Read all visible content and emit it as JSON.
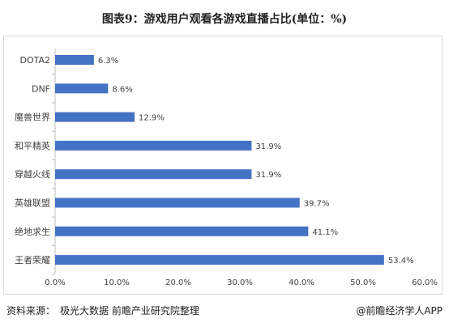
{
  "title": "图表9：游戏用户观看各游戏直播占比(单位：%)",
  "footer": {
    "source_label": "资料来源：",
    "source_text": "极光大数据 前瞻产业研究院整理",
    "brand": "@前瞻经济学人APP"
  },
  "colors": {
    "bar": "#4472c4",
    "axis": "#bfbfbf",
    "text": "#404040"
  },
  "chart_data": {
    "type": "bar",
    "orientation": "horizontal",
    "categories": [
      "DOTA2",
      "DNF",
      "魔兽世界",
      "和平精英",
      "穿越火线",
      "英雄联盟",
      "绝地求生",
      "王者荣耀"
    ],
    "values": [
      6.3,
      8.6,
      12.9,
      31.9,
      31.9,
      39.7,
      41.1,
      53.4
    ],
    "value_labels": [
      "6.3%",
      "8.6%",
      "12.9%",
      "31.9%",
      "31.9%",
      "39.7%",
      "41.1%",
      "53.4%"
    ],
    "xlim": [
      0,
      60
    ],
    "xticks": [
      0,
      10,
      20,
      30,
      40,
      50,
      60
    ],
    "xtick_labels": [
      "0.0%",
      "10.0%",
      "20.0%",
      "30.0%",
      "40.0%",
      "50.0%",
      "60.0%"
    ],
    "grid": false,
    "legend": "none"
  }
}
